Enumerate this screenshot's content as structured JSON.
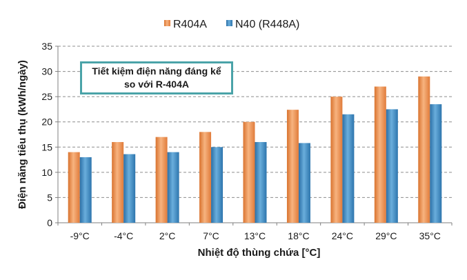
{
  "chart_data": {
    "type": "bar",
    "categories": [
      "-9°C",
      "-4°C",
      "2°C",
      "7°C",
      "13°C",
      "18°C",
      "24°C",
      "29°C",
      "35°C"
    ],
    "series": [
      {
        "name": "R404A",
        "values": [
          14,
          16,
          17,
          18,
          20,
          22.4,
          25,
          27,
          29
        ],
        "color": "#f0955a"
      },
      {
        "name": "N40 (R448A)",
        "values": [
          13,
          13.6,
          14,
          15,
          16,
          15.8,
          21.5,
          22.5,
          23.5
        ],
        "color": "#3a86c4"
      }
    ],
    "xlabel": "Nhiệt độ thùng chứa [°C]",
    "ylabel": "Điện năng tiêu thụ (kWh/ngày)",
    "ylim": [
      0,
      35
    ],
    "yticks": [
      0,
      5,
      10,
      15,
      20,
      25,
      30,
      35
    ],
    "grid": "horizontal dashed",
    "legend": "top-center",
    "annotation": [
      "Tiết kiệm điện năng đáng kể",
      "so với R-404A"
    ]
  }
}
